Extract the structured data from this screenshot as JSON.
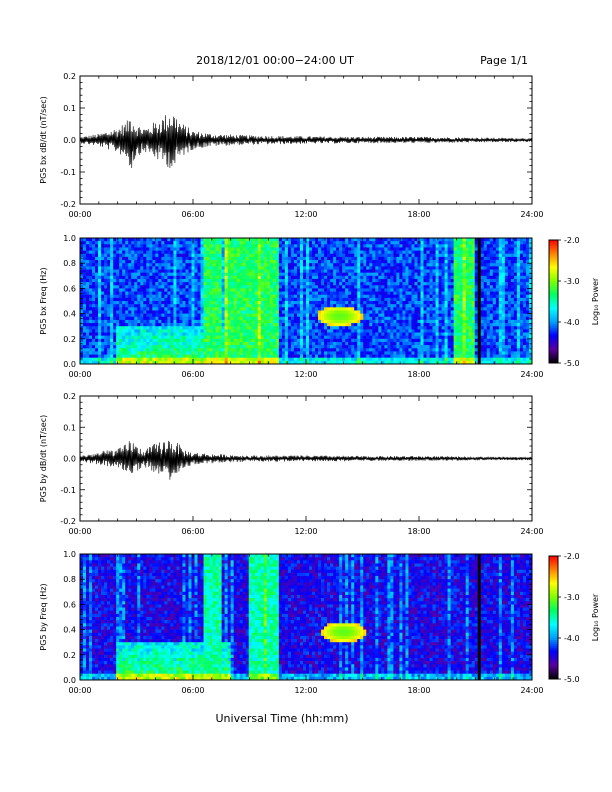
{
  "header": {
    "date_range": "2018/12/01  00:00−24:00 UT",
    "page": "Page 1/1"
  },
  "x_axis": {
    "title": "Universal Time (hh:mm)",
    "ticks": [
      "00:00",
      "06:00",
      "12:00",
      "18:00",
      "24:00"
    ],
    "range_hours": [
      0,
      24
    ]
  },
  "colorbar": {
    "label": "Log₁₀ Power",
    "ticks": [
      "-2.0",
      "-3.0",
      "-4.0",
      "-5.0"
    ],
    "range": [
      -5.0,
      -2.0
    ],
    "colormap": [
      "#000000",
      "#5a00a0",
      "#0000ff",
      "#00a0ff",
      "#00ffff",
      "#00ff60",
      "#80ff00",
      "#ffff00",
      "#ff8000",
      "#ff0000"
    ]
  },
  "chart_data": [
    {
      "type": "line",
      "ylabel": "PG5 bx dB/dt (nT/sec)",
      "ylim": [
        -0.2,
        0.2
      ],
      "y_ticks": [
        "0.2",
        "0.1",
        "0.0",
        "-0.1",
        "-0.2"
      ],
      "x_ticks": [
        "00:00",
        "06:00",
        "12:00",
        "18:00",
        "24:00"
      ],
      "x_hours": [
        0,
        1,
        1.5,
        2,
        2.5,
        2.7,
        3,
        3.5,
        4,
        4.5,
        4.8,
        5,
        5.2,
        5.5,
        6,
        7,
        9,
        12,
        15,
        18,
        21,
        24
      ],
      "y_max": [
        0.01,
        0.02,
        0.03,
        0.04,
        0.06,
        0.09,
        0.05,
        0.04,
        0.06,
        0.08,
        0.1,
        0.09,
        0.07,
        0.05,
        0.03,
        0.02,
        0.015,
        0.012,
        0.01,
        0.01,
        0.008,
        0.006
      ],
      "y_min": [
        -0.01,
        -0.02,
        -0.03,
        -0.04,
        -0.06,
        -0.1,
        -0.05,
        -0.04,
        -0.06,
        -0.08,
        -0.09,
        -0.1,
        -0.07,
        -0.05,
        -0.03,
        -0.02,
        -0.015,
        -0.012,
        -0.01,
        -0.01,
        -0.008,
        -0.006
      ]
    },
    {
      "type": "heatmap",
      "ylabel": "PG5 bx Freq (Hz)",
      "ylim": [
        0.0,
        1.0
      ],
      "y_ticks": [
        "1.0",
        "0.8",
        "0.6",
        "0.4",
        "0.2",
        "0.0"
      ],
      "x_ticks": [
        "00:00",
        "06:00",
        "12:00",
        "18:00",
        "24:00"
      ],
      "zlim": [
        -5.0,
        -2.0
      ],
      "background_log_power": -4.2,
      "elevated_intervals_hours": [
        [
          6.5,
          7.5
        ],
        [
          7.7,
          10.5
        ],
        [
          19.8,
          21.0
        ]
      ],
      "data_gap_hour": 21.2,
      "hotspot": {
        "time_hours": 13.8,
        "freq_hz": 0.38,
        "log_power": -3.1
      },
      "low_freq_enhancement": {
        "time_hours": [
          2.0,
          8.0
        ],
        "freq_hz": [
          0.0,
          0.3
        ],
        "log_power": -3.3
      }
    },
    {
      "type": "line",
      "ylabel": "PG5 by dB/dt (nT/sec)",
      "ylim": [
        -0.2,
        0.2
      ],
      "y_ticks": [
        "0.2",
        "0.1",
        "0.0",
        "-0.1",
        "-0.2"
      ],
      "x_ticks": [
        "00:00",
        "06:00",
        "12:00",
        "18:00",
        "24:00"
      ],
      "x_hours": [
        0,
        1,
        1.5,
        2,
        2.5,
        2.7,
        3,
        3.5,
        4,
        4.5,
        4.8,
        5,
        5.2,
        5.5,
        6,
        7,
        9,
        12,
        15,
        18,
        21,
        24
      ],
      "y_max": [
        0.01,
        0.02,
        0.03,
        0.03,
        0.05,
        0.07,
        0.04,
        0.03,
        0.05,
        0.06,
        0.07,
        0.06,
        0.05,
        0.03,
        0.02,
        0.015,
        0.01,
        0.01,
        0.008,
        0.008,
        0.006,
        0.005
      ],
      "y_min": [
        -0.01,
        -0.02,
        -0.03,
        -0.03,
        -0.05,
        -0.06,
        -0.04,
        -0.03,
        -0.05,
        -0.06,
        -0.07,
        -0.06,
        -0.05,
        -0.03,
        -0.02,
        -0.015,
        -0.01,
        -0.01,
        -0.008,
        -0.008,
        -0.006,
        -0.005
      ]
    },
    {
      "type": "heatmap",
      "ylabel": "PG5 by Freq (Hz)",
      "ylim": [
        0.0,
        1.0
      ],
      "y_ticks": [
        "1.0",
        "0.8",
        "0.6",
        "0.4",
        "0.2",
        "0.0"
      ],
      "x_ticks": [
        "00:00",
        "06:00",
        "12:00",
        "18:00",
        "24:00"
      ],
      "zlim": [
        -5.0,
        -2.0
      ],
      "background_log_power": -4.4,
      "elevated_intervals_hours": [
        [
          6.5,
          7.5
        ],
        [
          9.0,
          10.5
        ]
      ],
      "data_gap_hour": 21.2,
      "hotspot": {
        "time_hours": 14.0,
        "freq_hz": 0.38,
        "log_power": -3.1
      },
      "low_freq_enhancement": {
        "time_hours": [
          2.0,
          8.0
        ],
        "freq_hz": [
          0.0,
          0.3
        ],
        "log_power": -3.3
      }
    }
  ]
}
